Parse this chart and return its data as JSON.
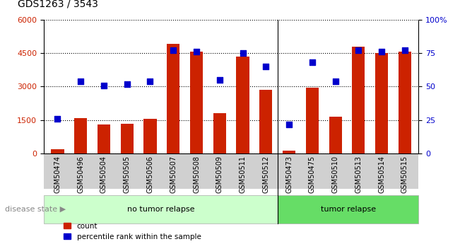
{
  "title": "GDS1263 / 3543",
  "categories": [
    "GSM50474",
    "GSM50496",
    "GSM50504",
    "GSM50505",
    "GSM50506",
    "GSM50507",
    "GSM50508",
    "GSM50509",
    "GSM50511",
    "GSM50512",
    "GSM50473",
    "GSM50475",
    "GSM50510",
    "GSM50513",
    "GSM50514",
    "GSM50515"
  ],
  "counts": [
    200,
    1600,
    1300,
    1350,
    1550,
    4900,
    4550,
    1800,
    4350,
    2850,
    130,
    2950,
    1650,
    4800,
    4500,
    4550
  ],
  "percentiles": [
    26,
    54,
    51,
    52,
    54,
    77,
    76,
    55,
    75,
    65,
    22,
    68,
    54,
    77,
    76,
    77
  ],
  "bar_color": "#cc2200",
  "dot_color": "#0000cc",
  "left_ylim": [
    0,
    6000
  ],
  "right_ylim": [
    0,
    100
  ],
  "left_yticks": [
    0,
    1500,
    3000,
    4500,
    6000
  ],
  "right_yticks": [
    0,
    25,
    50,
    75,
    100
  ],
  "right_yticklabels": [
    "0",
    "25",
    "50",
    "75",
    "100%"
  ],
  "no_tumor_count": 10,
  "tumor_count": 6,
  "no_tumor_label": "no tumor relapse",
  "tumor_label": "tumor relapse",
  "disease_state_label": "disease state",
  "legend_count_label": "count",
  "legend_percentile_label": "percentile rank within the sample",
  "label_color_no_tumor": "#ccffcc",
  "label_color_tumor": "#66dd66",
  "tick_area_color": "#d0d0d0"
}
